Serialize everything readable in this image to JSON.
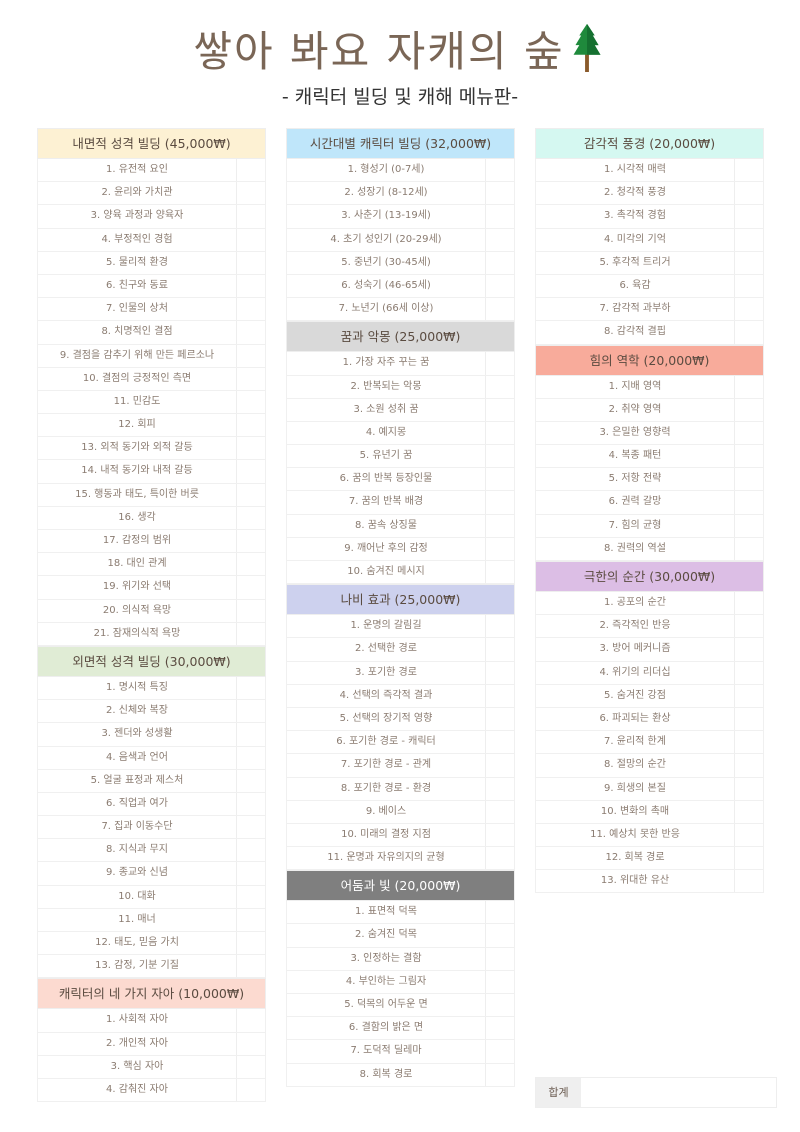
{
  "header": {
    "title": "쌓아 봐요 자캐의 숲",
    "title_icon": "pine-tree-icon",
    "subtitle": "- 캐릭터 빌딩 및 캐해 메뉴판-"
  },
  "columns": [
    [
      {
        "title": "내면적 성격 빌딩 (45,000₩)",
        "color": "#fdf1d3",
        "text_color": "#5a4b40",
        "items": [
          "1. 유전적 요인",
          "2. 윤리와 가치관",
          "3. 양육 과정과 양육자",
          "4. 부정적인 경험",
          "5. 물리적 환경",
          "6. 친구와 동료",
          "7. 인물의 상처",
          "8. 치명적인 결점",
          "9. 결점을 감추기 위해 만든 페르소나",
          "10. 결점의 긍정적인 측면",
          "11. 민감도",
          "12. 회피",
          "13. 외적 동기와 외적 갈등",
          "14. 내적 동기와 내적 갈등",
          "15. 행동과 태도, 특이한 버릇",
          "16. 생각",
          "17. 감정의 범위",
          "18. 대인 관계",
          "19. 위기와 선택",
          "20. 의식적 욕망",
          "21. 잠재의식적 욕망"
        ]
      },
      {
        "title": "외면적 성격 빌딩 (30,000₩)",
        "color": "#e0ecd5",
        "text_color": "#5a4b40",
        "items": [
          "1. 명시적 특징",
          "2. 신체와 복장",
          "3. 젠더와 성생활",
          "4. 음색과 언어",
          "5. 얼굴 표정과 제스처",
          "6. 직업과 여가",
          "7. 집과 이동수단",
          "8. 지식과 무지",
          "9. 종교와 신념",
          "10. 대화",
          "11. 매너",
          "12. 태도, 믿음 가치",
          "13. 감정, 기분 기질"
        ]
      },
      {
        "title": "캐릭터의 네 가지 자아 (10,000₩)",
        "color": "#fcdad0",
        "text_color": "#5a4b40",
        "items": [
          "1. 사회적 자아",
          "2. 개인적 자아",
          "3. 핵심 자아",
          "4. 감춰진 자아"
        ]
      }
    ],
    [
      {
        "title": "시간대별 캐릭터 빌딩 (32,000₩)",
        "color": "#bfe6fa",
        "text_color": "#5a4b40",
        "items": [
          "1. 형성기 (0-7세)",
          "2. 성장기 (8-12세)",
          "3. 사춘기 (13-19세)",
          "4. 초기 성인기 (20-29세)",
          "5. 중년기 (30-45세)",
          "6. 성숙기 (46-65세)",
          "7. 노년기 (66세 이상)"
        ]
      },
      {
        "title": "꿈과 악몽 (25,000₩)",
        "color": "#d9d9d9",
        "text_color": "#5a4b40",
        "items": [
          "1. 가장 자주 꾸는 꿈",
          "2. 반복되는 악몽",
          "3. 소원 성취 꿈",
          "4. 예지몽",
          "5. 유년기 꿈",
          "6. 꿈의 반복 등장인물",
          "7. 꿈의 반복 배경",
          "8. 꿈속 상징물",
          "9. 깨어난 후의 감정",
          "10. 숨겨진 메시지"
        ]
      },
      {
        "title": "나비 효과 (25,000₩)",
        "color": "#cdd1ee",
        "text_color": "#5a4b40",
        "items": [
          "1. 운명의 갈림길",
          "2. 선택한 경로",
          "3. 포기한 경로",
          "4. 선택의 즉각적 결과",
          "5. 선택의 장기적 영향",
          "6. 포기한 경로 - 캐릭터",
          "7. 포기한 경로 - 관계",
          "8. 포기한 경로 - 환경",
          "9. 베이스",
          "10. 미래의 결정 지점",
          "11. 운명과 자유의지의 균형"
        ]
      },
      {
        "title": "어둠과 빛 (20,000₩)",
        "color": "#7f7f7f",
        "text_color": "#ffffff",
        "items": [
          "1. 표면적 덕목",
          "2. 숨겨진 덕목",
          "3. 인정하는 결함",
          "4. 부인하는 그림자",
          "5. 덕목의 어두운 면",
          "6. 결함의 밝은 면",
          "7. 도덕적 딜레마",
          "8. 회복 경로"
        ]
      }
    ],
    [
      {
        "title": "감각적 풍경 (20,000₩)",
        "color": "#d5f8f1",
        "text_color": "#5a4b40",
        "items": [
          "1. 시각적 매력",
          "2. 청각적 풍경",
          "3. 촉각적 경험",
          "4. 미각의 기억",
          "5. 후각적 트리거",
          "6. 육감",
          "7. 감각적 과부하",
          "8. 감각적 결핍"
        ]
      },
      {
        "title": "힘의 역학 (20,000₩)",
        "color": "#f8ab9b",
        "text_color": "#5a4b40",
        "items": [
          "1. 지배 영역",
          "2. 취약 영역",
          "3. 은밀한 영향력",
          "4. 복종 패턴",
          "5. 저항 전략",
          "6. 권력 갈망",
          "7. 힘의 균형",
          "8. 권력의 역설"
        ]
      },
      {
        "title": "극한의 순간 (30,000₩)",
        "color": "#dcbee5",
        "text_color": "#5a4b40",
        "items": [
          "1. 공포의 순간",
          "2. 즉각적인 반응",
          "3. 방어 메커니즘",
          "4. 위기의 리더십",
          "5. 숨겨진 강점",
          "6. 파괴되는 환상",
          "7. 윤리적 한계",
          "8. 절망의 순간",
          "9. 희생의 본질",
          "10. 변화의 촉매",
          "11. 예상치 못한 반응",
          "12. 회복 경로",
          "13. 위대한 유산"
        ]
      }
    ]
  ],
  "total": {
    "label": "합계"
  }
}
